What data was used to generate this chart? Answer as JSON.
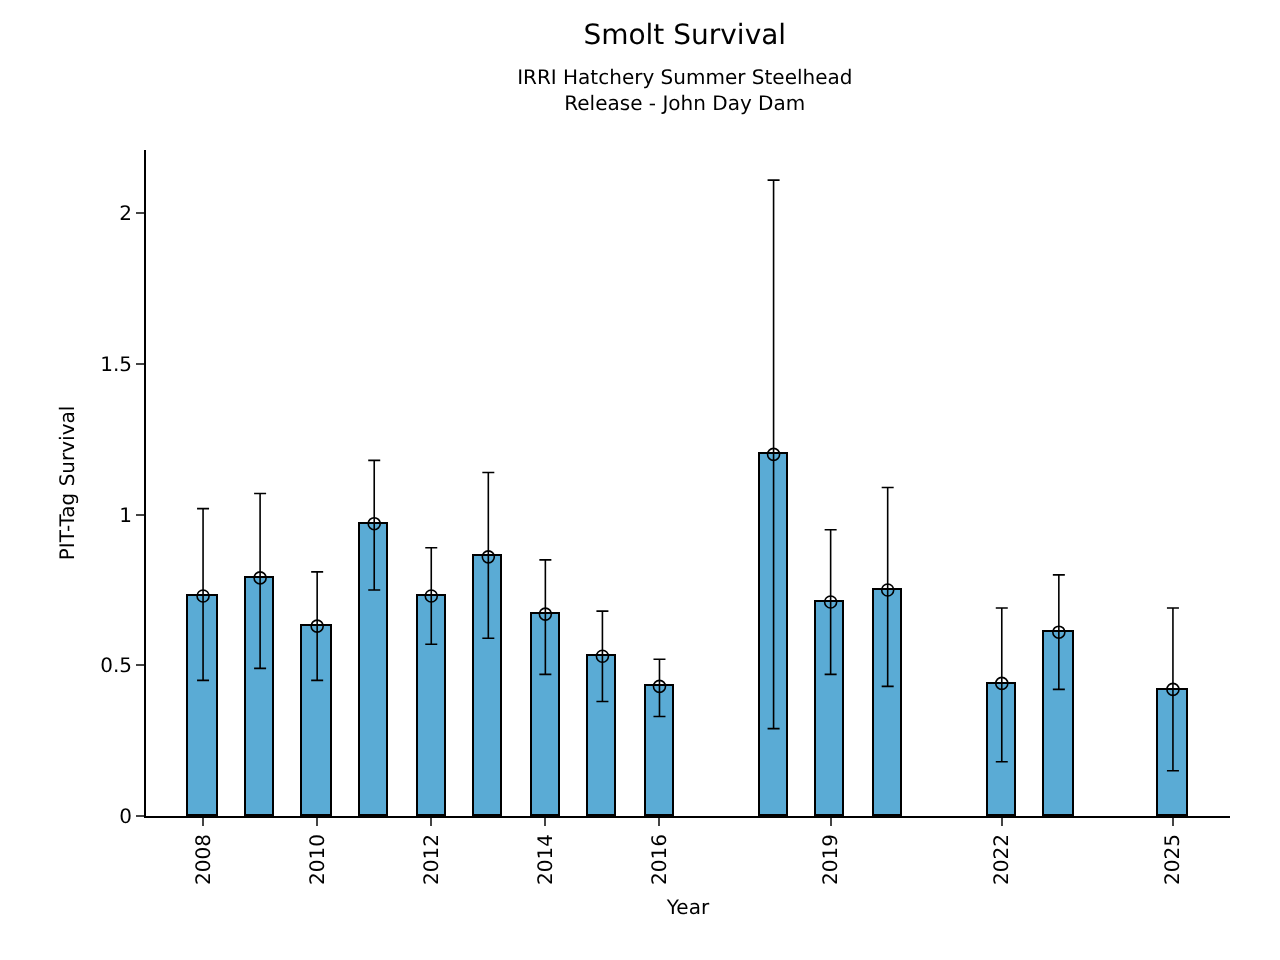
{
  "chart_data": {
    "type": "bar",
    "title": "Smolt Survival",
    "subtitle": "IRRI Hatchery Summer Steelhead\nRelease - John Day Dam",
    "xlabel": "Year",
    "ylabel": "PIT-Tag Survival",
    "x": [
      2008,
      2009,
      2010,
      2011,
      2012,
      2013,
      2014,
      2015,
      2016,
      2018,
      2019,
      2020,
      2022,
      2023,
      2025
    ],
    "series": [
      {
        "color": "#5aabd5",
        "values": [
          0.73,
          0.79,
          0.63,
          0.97,
          0.73,
          0.86,
          0.67,
          0.53,
          0.43,
          1.2,
          0.71,
          0.75,
          0.44,
          0.61,
          0.42
        ],
        "errors": [
          [
            0.45,
            1.02
          ],
          [
            0.49,
            1.07
          ],
          [
            0.45,
            0.81
          ],
          [
            0.75,
            1.18
          ],
          [
            0.57,
            0.89
          ],
          [
            0.59,
            1.14
          ],
          [
            0.47,
            0.85
          ],
          [
            0.38,
            0.68
          ],
          [
            0.33,
            0.52
          ],
          [
            0.29,
            2.11
          ],
          [
            0.47,
            0.95
          ],
          [
            0.43,
            1.09
          ],
          [
            0.18,
            0.69
          ],
          [
            0.42,
            0.8
          ],
          [
            0.15,
            0.69
          ]
        ]
      },
      {
        "type": "scatter",
        "color": "#000000",
        "marker": "circle",
        "values": [
          0.73,
          0.79,
          0.63,
          0.97,
          0.73,
          0.86,
          0.67,
          0.53,
          0.43,
          1.2,
          0.71,
          0.75,
          0.44,
          0.61,
          0.42
        ]
      }
    ],
    "xlim": [
      2007,
      2026
    ],
    "xticks": [
      2008,
      2010,
      2012,
      2014,
      2016,
      2019,
      2022,
      2025
    ],
    "ylim": [
      0,
      2.21
    ],
    "yticks": [
      0,
      {
        "value": 0.5,
        "label": "0.5"
      },
      1,
      {
        "value": 1.5,
        "label": "1.5"
      },
      2
    ],
    "grid": false
  }
}
